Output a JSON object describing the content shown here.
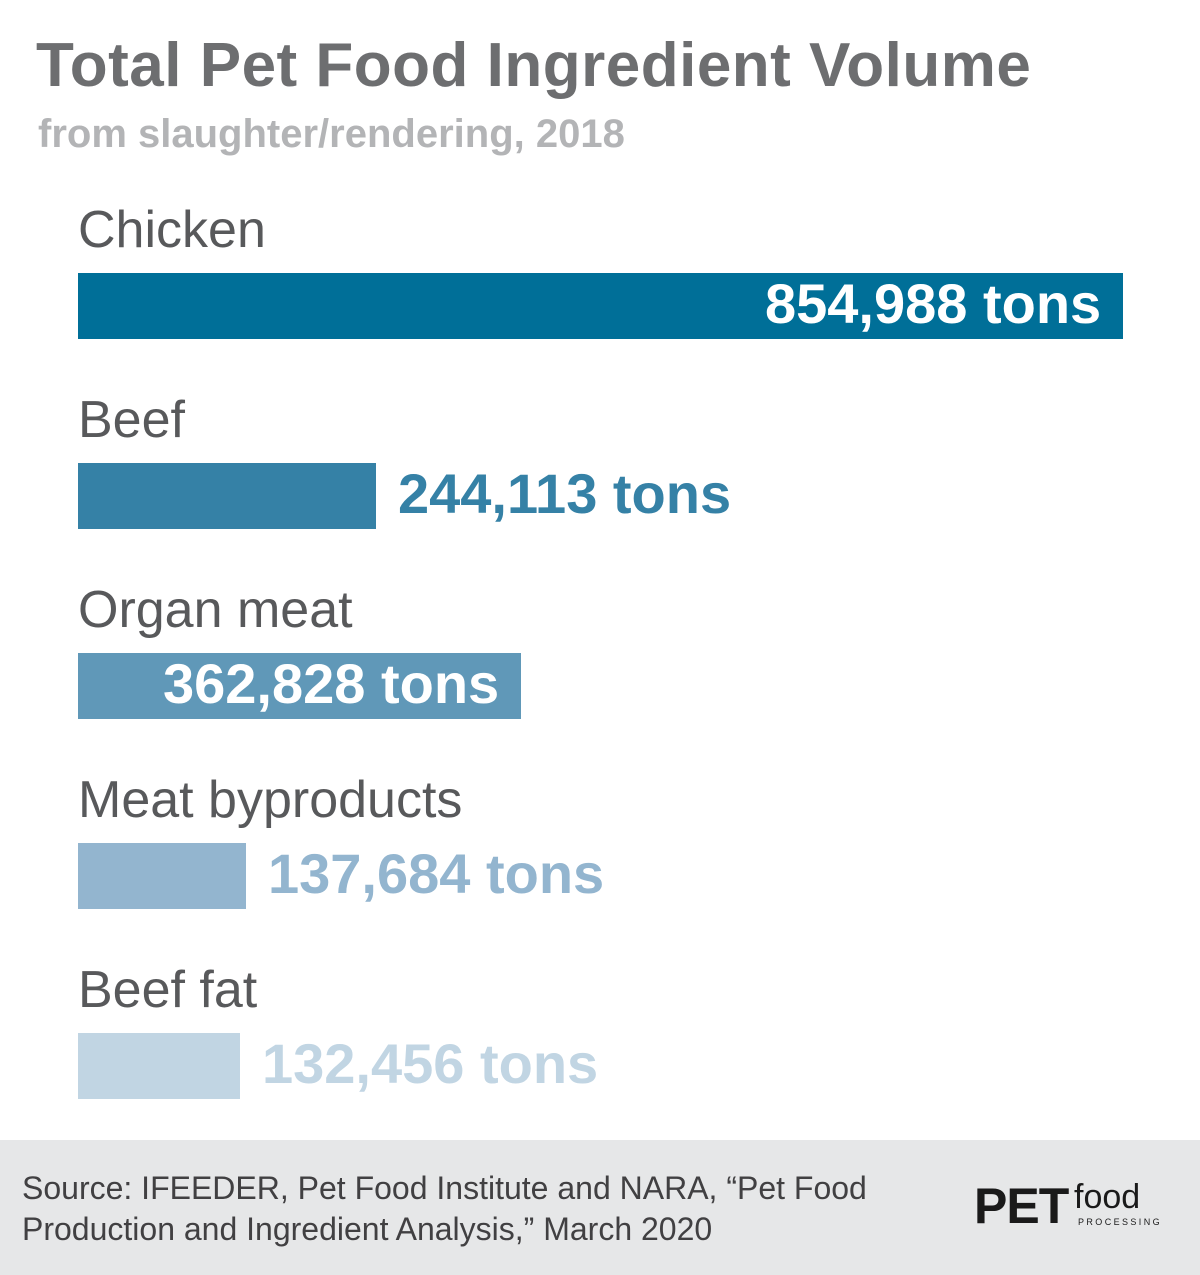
{
  "chart_data": {
    "type": "bar",
    "orientation": "horizontal",
    "title": "Total Pet Food Ingredient Volume",
    "subtitle": "from slaughter/rendering, 2018",
    "categories": [
      "Chicken",
      "Beef",
      "Organ meat",
      "Meat byproducts",
      "Beef fat"
    ],
    "values": [
      854988,
      244113,
      362828,
      137684,
      132456
    ],
    "value_labels": [
      "854,988 tons",
      "244,113 tons",
      "362,828 tons",
      "137,684 tons",
      "132,456 tons"
    ],
    "colors": [
      "#006f98",
      "#3581a6",
      "#6098b8",
      "#93b5cf",
      "#c1d5e3"
    ],
    "xlabel": "",
    "ylabel": "",
    "grid": false,
    "legend": "none"
  },
  "footer": {
    "source": "Source: IFEEDER, Pet Food Institute and NARA, “Pet Food Production and Ingredient Analysis,” March 2020"
  },
  "logo": {
    "pet": "PET",
    "food": "food",
    "processing": "PROCESSING"
  }
}
